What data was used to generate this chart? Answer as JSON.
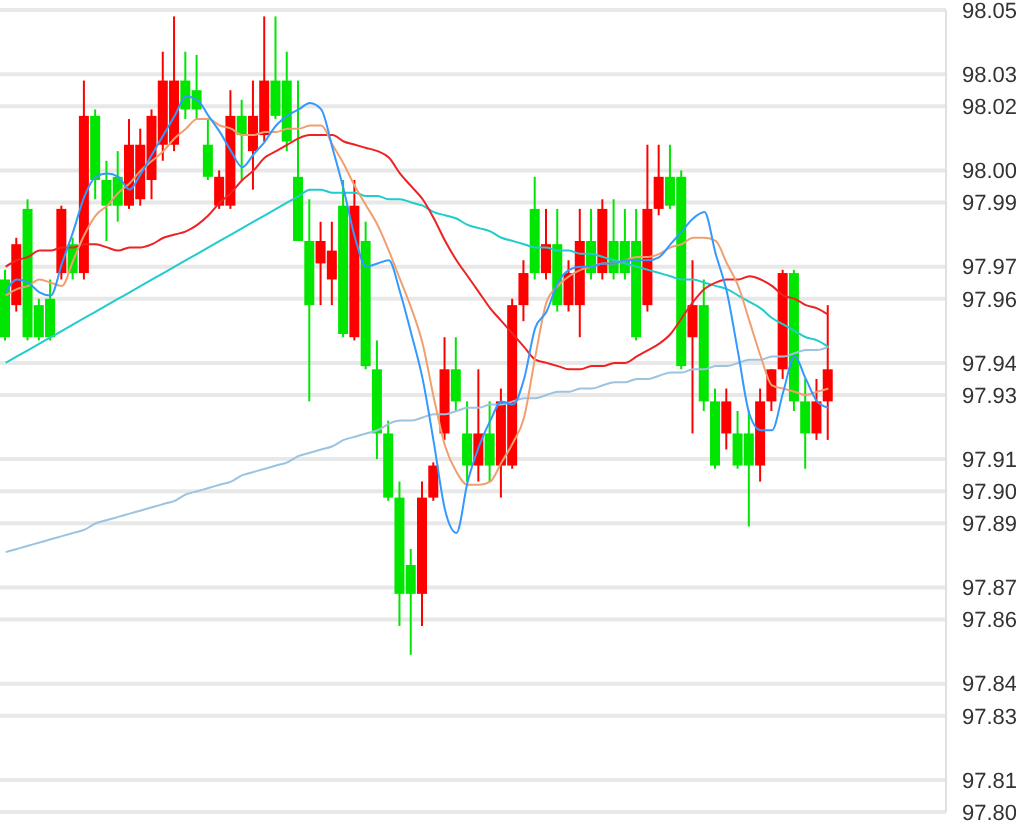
{
  "chart_data": {
    "type": "candlestick",
    "tick_labels": "y",
    "grid": "y",
    "marker": "none",
    "line_style": "solid",
    "categories": [
      null,
      null,
      null,
      null,
      null,
      null,
      null,
      null,
      null,
      null,
      null,
      null,
      null,
      null,
      null,
      null,
      null,
      null,
      null,
      null,
      null,
      null,
      null,
      null,
      null,
      null,
      null,
      null,
      null,
      null,
      null,
      null,
      null,
      null,
      null,
      null,
      null,
      null,
      null,
      null,
      null,
      null,
      null,
      null,
      null,
      null,
      null,
      null,
      null,
      null,
      null,
      null,
      null,
      null,
      null,
      null,
      null,
      null,
      null,
      null,
      null,
      null,
      null,
      null,
      null,
      null,
      null,
      null,
      null,
      null,
      null,
      null,
      null,
      null
    ],
    "ylim": [
      97.8,
      98.05
    ],
    "yticks": [
      {
        "value": 97.8,
        "label": "97.80"
      },
      {
        "value": 97.81,
        "label": "97.81"
      },
      {
        "value": 97.83,
        "label": "97.83"
      },
      {
        "value": 97.84,
        "label": "97.84"
      },
      {
        "value": 97.86,
        "label": "97.86"
      },
      {
        "value": 97.87,
        "label": "97.87"
      },
      {
        "value": 97.89,
        "label": "97.89"
      },
      {
        "value": 97.9,
        "label": "97.90"
      },
      {
        "value": 97.91,
        "label": "97.91"
      },
      {
        "value": 97.93,
        "label": "97.93"
      },
      {
        "value": 97.94,
        "label": "97.94"
      },
      {
        "value": 97.96,
        "label": "97.96"
      },
      {
        "value": 97.97,
        "label": "97.97"
      },
      {
        "value": 97.99,
        "label": "97.99"
      },
      {
        "value": 98.0,
        "label": "98.00"
      },
      {
        "value": 98.02,
        "label": "98.02"
      },
      {
        "value": 98.03,
        "label": "98.03"
      },
      {
        "value": 98.05,
        "label": "98.05"
      }
    ],
    "ohlc": [
      [
        97.966,
        97.969,
        97.947,
        97.948
      ],
      [
        97.958,
        97.979,
        97.956,
        97.977
      ],
      [
        97.988,
        97.991,
        97.947,
        97.948
      ],
      [
        97.958,
        97.96,
        97.947,
        97.948
      ],
      [
        97.96,
        97.966,
        97.947,
        97.948
      ],
      [
        97.968,
        97.989,
        97.966,
        97.988
      ],
      [
        97.977,
        97.979,
        97.966,
        97.968
      ],
      [
        97.968,
        98.028,
        97.966,
        98.017
      ],
      [
        98.017,
        98.019,
        97.991,
        97.997
      ],
      [
        97.997,
        98.003,
        97.978,
        97.989
      ],
      [
        97.998,
        98.006,
        97.984,
        97.989
      ],
      [
        97.989,
        98.016,
        97.988,
        98.008
      ],
      [
        97.991,
        98.013,
        97.989,
        98.008
      ],
      [
        97.997,
        98.019,
        97.991,
        98.017
      ],
      [
        98.008,
        98.037,
        98.003,
        98.028
      ],
      [
        98.008,
        98.048,
        98.006,
        98.028
      ],
      [
        98.028,
        98.037,
        98.016,
        98.019
      ],
      [
        98.025,
        98.036,
        98.016,
        98.019
      ],
      [
        98.008,
        98.016,
        97.997,
        97.998
      ],
      [
        97.989,
        98.0,
        97.988,
        97.998
      ],
      [
        97.989,
        98.025,
        97.988,
        98.017
      ],
      [
        98.017,
        98.022,
        97.997,
        98.011
      ],
      [
        98.006,
        98.028,
        97.994,
        98.017
      ],
      [
        98.011,
        98.048,
        98.009,
        98.028
      ],
      [
        98.028,
        98.048,
        98.016,
        98.017
      ],
      [
        98.028,
        98.037,
        98.006,
        98.009
      ],
      [
        97.998,
        98.028,
        97.978,
        97.978
      ],
      [
        97.978,
        97.991,
        97.928,
        97.958
      ],
      [
        97.971,
        97.984,
        97.958,
        97.978
      ],
      [
        97.966,
        97.984,
        97.958,
        97.975
      ],
      [
        97.989,
        97.997,
        97.948,
        97.949
      ],
      [
        97.948,
        97.997,
        97.947,
        97.989
      ],
      [
        97.978,
        97.984,
        97.938,
        97.939
      ],
      [
        97.938,
        97.947,
        97.91,
        97.918
      ],
      [
        97.918,
        97.922,
        97.897,
        97.898
      ],
      [
        97.898,
        97.903,
        97.858,
        97.868
      ],
      [
        97.877,
        97.882,
        97.849,
        97.868
      ],
      [
        97.868,
        97.903,
        97.858,
        97.898
      ],
      [
        97.898,
        97.909,
        97.897,
        97.908
      ],
      [
        97.918,
        97.948,
        97.916,
        97.938
      ],
      [
        97.938,
        97.948,
        97.925,
        97.928
      ],
      [
        97.918,
        97.928,
        97.903,
        97.908
      ],
      [
        97.908,
        97.938,
        97.903,
        97.918
      ],
      [
        97.918,
        97.928,
        97.903,
        97.908
      ],
      [
        97.908,
        97.932,
        97.898,
        97.928
      ],
      [
        97.908,
        97.96,
        97.907,
        97.958
      ],
      [
        97.958,
        97.972,
        97.953,
        97.968
      ],
      [
        97.988,
        97.998,
        97.966,
        97.968
      ],
      [
        97.968,
        97.988,
        97.966,
        97.977
      ],
      [
        97.977,
        97.988,
        97.956,
        97.958
      ],
      [
        97.958,
        97.972,
        97.956,
        97.968
      ],
      [
        97.958,
        97.988,
        97.948,
        97.978
      ],
      [
        97.978,
        97.988,
        97.966,
        97.968
      ],
      [
        97.968,
        97.991,
        97.966,
        97.988
      ],
      [
        97.978,
        97.991,
        97.966,
        97.968
      ],
      [
        97.978,
        97.988,
        97.966,
        97.968
      ],
      [
        97.978,
        97.988,
        97.947,
        97.948
      ],
      [
        97.958,
        98.008,
        97.956,
        97.988
      ],
      [
        97.988,
        98.008,
        97.986,
        97.998
      ],
      [
        97.998,
        98.008,
        97.988,
        97.989
      ],
      [
        97.998,
        98.0,
        97.938,
        97.939
      ],
      [
        97.948,
        97.972,
        97.918,
        97.958
      ],
      [
        97.958,
        97.966,
        97.925,
        97.928
      ],
      [
        97.928,
        97.932,
        97.907,
        97.908
      ],
      [
        97.918,
        97.932,
        97.913,
        97.928
      ],
      [
        97.918,
        97.925,
        97.907,
        97.908
      ],
      [
        97.918,
        97.925,
        97.889,
        97.908
      ],
      [
        97.908,
        97.932,
        97.903,
        97.928
      ],
      [
        97.928,
        97.938,
        97.925,
        97.938
      ],
      [
        97.938,
        97.969,
        97.935,
        97.968
      ],
      [
        97.968,
        97.969,
        97.925,
        97.928
      ],
      [
        97.928,
        97.935,
        97.907,
        97.918
      ],
      [
        97.918,
        97.935,
        97.916,
        97.928
      ],
      [
        97.928,
        97.958,
        97.916,
        97.938
      ]
    ],
    "colors": [
      "#00e600",
      "#ff0000",
      "#00e600",
      "#00e600",
      "#00e600",
      "#ff0000",
      "#00e600",
      "#ff0000",
      "#00e600",
      "#00e600",
      "#00e600",
      "#ff0000",
      "#ff0000",
      "#ff0000",
      "#ff0000",
      "#ff0000",
      "#00e600",
      "#00e600",
      "#00e600",
      "#ff0000",
      "#ff0000",
      "#00e600",
      "#ff0000",
      "#ff0000",
      "#00e600",
      "#00e600",
      "#00e600",
      "#00e600",
      "#ff0000",
      "#ff0000",
      "#00e600",
      "#ff0000",
      "#00e600",
      "#00e600",
      "#00e600",
      "#00e600",
      "#00e600",
      "#ff0000",
      "#ff0000",
      "#ff0000",
      "#00e600",
      "#00e600",
      "#ff0000",
      "#00e600",
      "#ff0000",
      "#ff0000",
      "#ff0000",
      "#00e600",
      "#ff0000",
      "#00e600",
      "#ff0000",
      "#ff0000",
      "#00e600",
      "#ff0000",
      "#00e600",
      "#00e600",
      "#00e600",
      "#ff0000",
      "#ff0000",
      "#00e600",
      "#00e600",
      "#ff0000",
      "#00e600",
      "#00e600",
      "#ff0000",
      "#00e600",
      "#00e600",
      "#ff0000",
      "#ff0000",
      "#ff0000",
      "#00e600",
      "#00e600",
      "#ff0000",
      "#ff0000"
    ],
    "series": [
      {
        "type": "line",
        "color": "#9cc3e0",
        "values": [
          97.881,
          97.882,
          97.883,
          97.884,
          97.885,
          97.886,
          97.887,
          97.888,
          97.89,
          97.891,
          97.892,
          97.893,
          97.894,
          97.895,
          97.896,
          97.897,
          97.899,
          97.9,
          97.901,
          97.902,
          97.903,
          97.905,
          97.906,
          97.907,
          97.908,
          97.909,
          97.911,
          97.912,
          97.913,
          97.914,
          97.916,
          97.917,
          97.918,
          97.919,
          97.921,
          97.922,
          97.922,
          97.923,
          97.924,
          97.924,
          97.925,
          97.926,
          97.926,
          97.927,
          97.927,
          97.928,
          97.929,
          97.929,
          97.93,
          97.931,
          97.931,
          97.932,
          97.932,
          97.933,
          97.934,
          97.934,
          97.935,
          97.935,
          97.936,
          97.937,
          97.937,
          97.938,
          97.938,
          97.939,
          97.939,
          97.94,
          97.941,
          97.941,
          97.942,
          97.942,
          97.943,
          97.944,
          97.944,
          97.945
        ]
      },
      {
        "type": "line",
        "color": "#22cccc",
        "values": [
          97.94,
          97.942,
          97.944,
          97.946,
          97.948,
          97.95,
          97.952,
          97.954,
          97.956,
          97.958,
          97.96,
          97.962,
          97.964,
          97.966,
          97.968,
          97.97,
          97.972,
          97.974,
          97.976,
          97.978,
          97.98,
          97.982,
          97.984,
          97.986,
          97.988,
          97.99,
          97.992,
          97.994,
          97.994,
          97.993,
          97.993,
          97.993,
          97.992,
          97.992,
          97.991,
          97.991,
          97.99,
          97.989,
          97.987,
          97.986,
          97.985,
          97.983,
          97.982,
          97.981,
          97.979,
          97.978,
          97.977,
          97.976,
          97.976,
          97.975,
          97.975,
          97.974,
          97.974,
          97.973,
          97.972,
          97.971,
          97.97,
          97.969,
          97.968,
          97.967,
          97.966,
          97.966,
          97.965,
          97.964,
          97.963,
          97.961,
          97.959,
          97.957,
          97.954,
          97.952,
          97.95,
          97.948,
          97.947,
          97.945
        ]
      },
      {
        "type": "line",
        "color": "#ee2222",
        "values": [
          97.97,
          97.972,
          97.973,
          97.975,
          97.975,
          97.976,
          97.976,
          97.977,
          97.977,
          97.976,
          97.975,
          97.976,
          97.976,
          97.977,
          97.979,
          97.98,
          97.981,
          97.983,
          97.986,
          97.99,
          97.993,
          97.997,
          98.0,
          98.004,
          98.006,
          98.008,
          98.01,
          98.011,
          98.011,
          98.011,
          98.009,
          98.008,
          98.007,
          98.006,
          98.004,
          97.999,
          97.995,
          97.991,
          97.985,
          97.978,
          97.972,
          97.967,
          97.962,
          97.957,
          97.953,
          97.949,
          97.945,
          97.941,
          97.94,
          97.939,
          97.938,
          97.938,
          97.939,
          97.939,
          97.94,
          97.94,
          97.942,
          97.944,
          97.946,
          97.949,
          97.954,
          97.959,
          97.963,
          97.965,
          97.966,
          97.966,
          97.967,
          97.966,
          97.964,
          97.961,
          97.96,
          97.958,
          97.957,
          97.955
        ]
      },
      {
        "type": "line",
        "color": "#f0a070",
        "values": [
          97.961,
          97.963,
          97.964,
          97.966,
          97.965,
          97.964,
          97.972,
          97.98,
          97.986,
          97.989,
          97.993,
          97.996,
          98.0,
          98.003,
          98.006,
          98.01,
          98.013,
          98.016,
          98.016,
          98.014,
          98.013,
          98.011,
          98.011,
          98.012,
          98.012,
          98.013,
          98.013,
          98.014,
          98.014,
          98.008,
          98.002,
          97.995,
          97.989,
          97.983,
          97.975,
          97.966,
          97.957,
          97.946,
          97.929,
          97.914,
          97.906,
          97.902,
          97.902,
          97.903,
          97.909,
          97.915,
          97.923,
          97.942,
          97.959,
          97.964,
          97.967,
          97.969,
          97.97,
          97.971,
          97.971,
          97.972,
          97.973,
          97.973,
          97.974,
          97.976,
          97.977,
          97.979,
          97.979,
          97.978,
          97.971,
          97.964,
          97.953,
          97.942,
          97.933,
          97.932,
          97.931,
          97.93,
          97.931,
          97.932
        ]
      },
      {
        "type": "line",
        "color": "#3399ff",
        "values": [
          97.962,
          97.966,
          97.965,
          97.962,
          97.961,
          97.971,
          97.981,
          97.992,
          97.998,
          97.999,
          97.998,
          97.994,
          97.999,
          98.005,
          98.011,
          98.017,
          98.023,
          98.022,
          98.017,
          98.012,
          98.006,
          98.001,
          98.005,
          98.009,
          98.014,
          98.017,
          98.019,
          98.021,
          98.019,
          98.007,
          97.994,
          97.979,
          97.97,
          97.971,
          97.972,
          97.962,
          97.949,
          97.935,
          97.915,
          97.894,
          97.887,
          97.903,
          97.914,
          97.922,
          97.928,
          97.927,
          97.935,
          97.951,
          97.956,
          97.965,
          97.969,
          97.97,
          97.97,
          97.971,
          97.971,
          97.972,
          97.972,
          97.972,
          97.973,
          97.977,
          97.981,
          97.985,
          97.987,
          97.974,
          97.962,
          97.943,
          97.924,
          97.919,
          97.919,
          97.931,
          97.942,
          97.935,
          97.928,
          97.926
        ]
      }
    ]
  }
}
